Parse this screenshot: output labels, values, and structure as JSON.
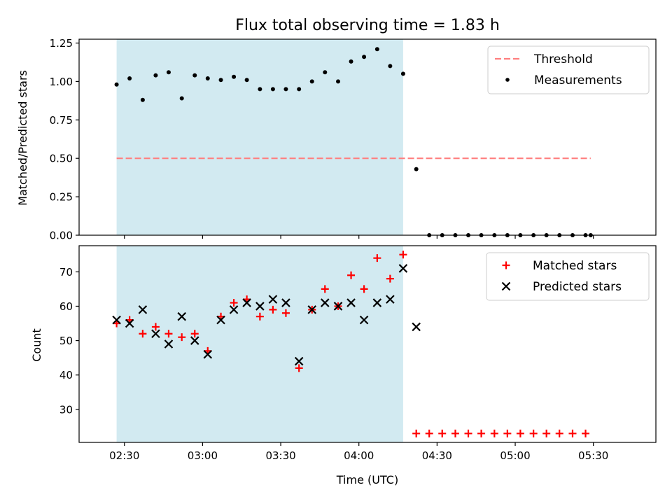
{
  "chart_data": {
    "title": "Flux total observing time = 1.83 h",
    "shaded_region_color": "#add8e6",
    "x_tick_labels": [
      "02:30",
      "03:00",
      "03:30",
      "04:00",
      "04:30",
      "05:00",
      "05:30"
    ],
    "x_tick_hours": [
      2.5,
      3.0,
      3.5,
      4.0,
      4.5,
      5.0,
      5.5
    ],
    "x_unit": "hours (UTC)",
    "xlim": [
      2.21,
      5.9
    ],
    "shaded_x_range": [
      2.45,
      4.283
    ],
    "panels": [
      {
        "type": "scatter",
        "ylabel": "Matched/Predicted stars",
        "ylim": [
          0,
          1.275
        ],
        "yticks": [
          0.0,
          0.25,
          0.5,
          0.75,
          1.0,
          1.25
        ],
        "ytick_labels": [
          "0.00",
          "0.25",
          "0.50",
          "0.75",
          "1.00",
          "1.25"
        ],
        "legend_position": "top-right",
        "threshold": {
          "name": "Threshold",
          "value": 0.5,
          "x_range": [
            2.45,
            5.483
          ],
          "color": "#ff7f7f"
        },
        "series": [
          {
            "name": "Measurements",
            "color": "#000000",
            "marker": "dot",
            "x": [
              2.45,
              2.533,
              2.617,
              2.7,
              2.783,
              2.867,
              2.95,
              3.033,
              3.117,
              3.2,
              3.283,
              3.367,
              3.45,
              3.533,
              3.617,
              3.7,
              3.783,
              3.867,
              3.95,
              4.033,
              4.117,
              4.2,
              4.283,
              4.367,
              4.45,
              4.533,
              4.617,
              4.7,
              4.783,
              4.867,
              4.95,
              5.033,
              5.117,
              5.2,
              5.283,
              5.367,
              5.45,
              5.483
            ],
            "y": [
              0.98,
              1.02,
              0.88,
              1.04,
              1.06,
              0.89,
              1.04,
              1.02,
              1.01,
              1.03,
              1.01,
              0.95,
              0.95,
              0.95,
              0.95,
              1.0,
              1.06,
              1.0,
              1.13,
              1.16,
              1.21,
              1.1,
              1.05,
              0.43,
              0.0,
              0.0,
              0.0,
              0.0,
              0.0,
              0.0,
              0.0,
              0.0,
              0.0,
              0.0,
              0.0,
              0.0,
              0.0,
              0.0
            ]
          }
        ]
      },
      {
        "type": "scatter",
        "ylabel": "Count",
        "xlabel": "Time (UTC)",
        "ylim": [
          20.4,
          77.6
        ],
        "yticks": [
          30,
          40,
          50,
          60,
          70
        ],
        "ytick_labels": [
          "30",
          "40",
          "50",
          "60",
          "70"
        ],
        "legend_position": "top-right",
        "series": [
          {
            "name": "Matched stars",
            "color": "#ff0000",
            "marker": "plus",
            "x": [
              2.45,
              2.533,
              2.617,
              2.7,
              2.783,
              2.867,
              2.95,
              3.033,
              3.117,
              3.2,
              3.283,
              3.367,
              3.45,
              3.533,
              3.617,
              3.7,
              3.783,
              3.867,
              3.95,
              4.033,
              4.117,
              4.2,
              4.283,
              4.367,
              4.45,
              4.533,
              4.617,
              4.7,
              4.783,
              4.867,
              4.95,
              5.033,
              5.117,
              5.2,
              5.283,
              5.367,
              5.45
            ],
            "y": [
              55,
              56,
              52,
              54,
              52,
              51,
              52,
              47,
              57,
              61,
              62,
              57,
              59,
              58,
              42,
              59,
              65,
              60,
              69,
              65,
              74,
              68,
              75,
              23,
              23,
              23,
              23,
              23,
              23,
              23,
              23,
              23,
              23,
              23,
              23,
              23,
              23
            ]
          },
          {
            "name": "Predicted stars",
            "color": "#000000",
            "marker": "x",
            "x": [
              2.45,
              2.533,
              2.617,
              2.7,
              2.783,
              2.867,
              2.95,
              3.033,
              3.117,
              3.2,
              3.283,
              3.367,
              3.45,
              3.533,
              3.617,
              3.7,
              3.783,
              3.867,
              3.95,
              4.033,
              4.117,
              4.2,
              4.283,
              4.367
            ],
            "y": [
              56,
              55,
              59,
              52,
              49,
              57,
              50,
              46,
              56,
              59,
              61,
              60,
              62,
              61,
              44,
              59,
              61,
              60,
              61,
              56,
              61,
              62,
              71,
              54
            ]
          }
        ]
      }
    ]
  }
}
